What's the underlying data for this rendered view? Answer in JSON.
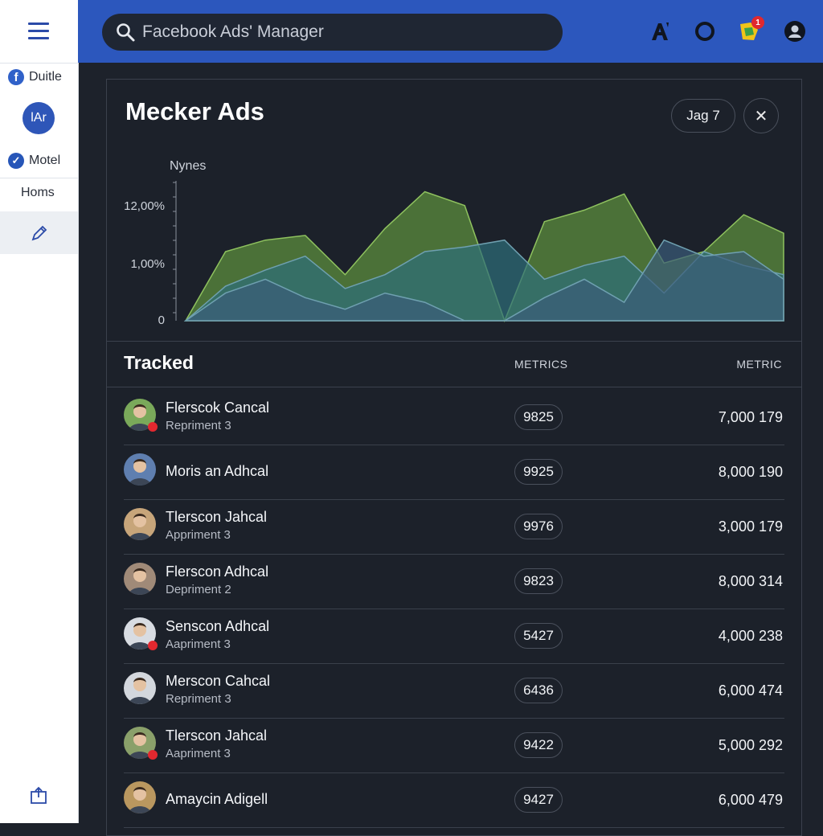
{
  "sidebar": {
    "menu_icon": "hamburger-icon",
    "items": [
      {
        "label": "Duitle",
        "icon": "facebook-icon"
      },
      {
        "label": "lAr",
        "icon": "avatar"
      },
      {
        "label": "Motel",
        "icon": "check-circle-icon"
      },
      {
        "label": "Homs"
      },
      {
        "label": "",
        "icon": "edit-pen-icon"
      }
    ],
    "bottom_icon": "share-box-icon"
  },
  "topbar": {
    "search_text": "Facebook Ads' Manager",
    "icons": [
      "font-a-icon",
      "ring-icon",
      "notification-flag-icon",
      "account-icon"
    ],
    "notification_count": "1"
  },
  "panel": {
    "title": "Mecker Ads",
    "filter_label": "Jag 7",
    "close_icon": "close-icon"
  },
  "chart_data": {
    "type": "area",
    "ylabel": "Nynes",
    "y_tick_labels": [
      "12,00%",
      "1,00%",
      "0"
    ],
    "series": [
      {
        "color": "#5b8c3e",
        "values": [
          0,
          30,
          35,
          37,
          20,
          40,
          56,
          50,
          0,
          43,
          48,
          55,
          25,
          30,
          46,
          38
        ]
      },
      {
        "color": "#2d6f7a",
        "values": [
          0,
          15,
          22,
          28,
          14,
          20,
          30,
          32,
          35,
          18,
          24,
          28,
          12,
          30,
          24,
          20
        ]
      },
      {
        "color": "#3a5c7a",
        "values": [
          0,
          12,
          18,
          10,
          5,
          12,
          8,
          0,
          0,
          10,
          18,
          8,
          35,
          28,
          30,
          18
        ]
      }
    ]
  },
  "table": {
    "section_title": "Tracked",
    "col_metrics": "METRICS",
    "col_metric": "METRIC",
    "rows": [
      {
        "name": "Flerscok Cancal",
        "sub": "Repriment 3",
        "pill": "9825",
        "value": "7,000 179",
        "avatar_bg": "#7aa95a",
        "badge": true
      },
      {
        "name": "Moris an Adhcal",
        "sub": "",
        "pill": "9925",
        "value": "8,000 190",
        "avatar_bg": "#5f7fb0",
        "badge": false
      },
      {
        "name": "Tlerscon Jahcal",
        "sub": "Appriment 3",
        "pill": "9976",
        "value": "3,000 179",
        "avatar_bg": "#c7a57a",
        "badge": false
      },
      {
        "name": "Flerscon Adhcal",
        "sub": "Depriment 2",
        "pill": "9823",
        "value": "8,000 314",
        "avatar_bg": "#a08a78",
        "badge": false
      },
      {
        "name": "Senscon Adhcal",
        "sub": "Aapriment 3",
        "pill": "5427",
        "value": "4,000 238",
        "avatar_bg": "#d8dce2",
        "badge": true
      },
      {
        "name": "Merscon Cahcal",
        "sub": "Repriment 3",
        "pill": "6436",
        "value": "6,000 474",
        "avatar_bg": "#d3d7dd",
        "badge": false
      },
      {
        "name": "Tlerscon Jahcal",
        "sub": "Aapriment 3",
        "pill": "9422",
        "value": "5,000 292",
        "avatar_bg": "#8aa06a",
        "badge": true
      },
      {
        "name": "Amaycin Adigell",
        "sub": "",
        "pill": "9427",
        "value": "6,000 479",
        "avatar_bg": "#b9975f",
        "badge": false
      }
    ]
  }
}
